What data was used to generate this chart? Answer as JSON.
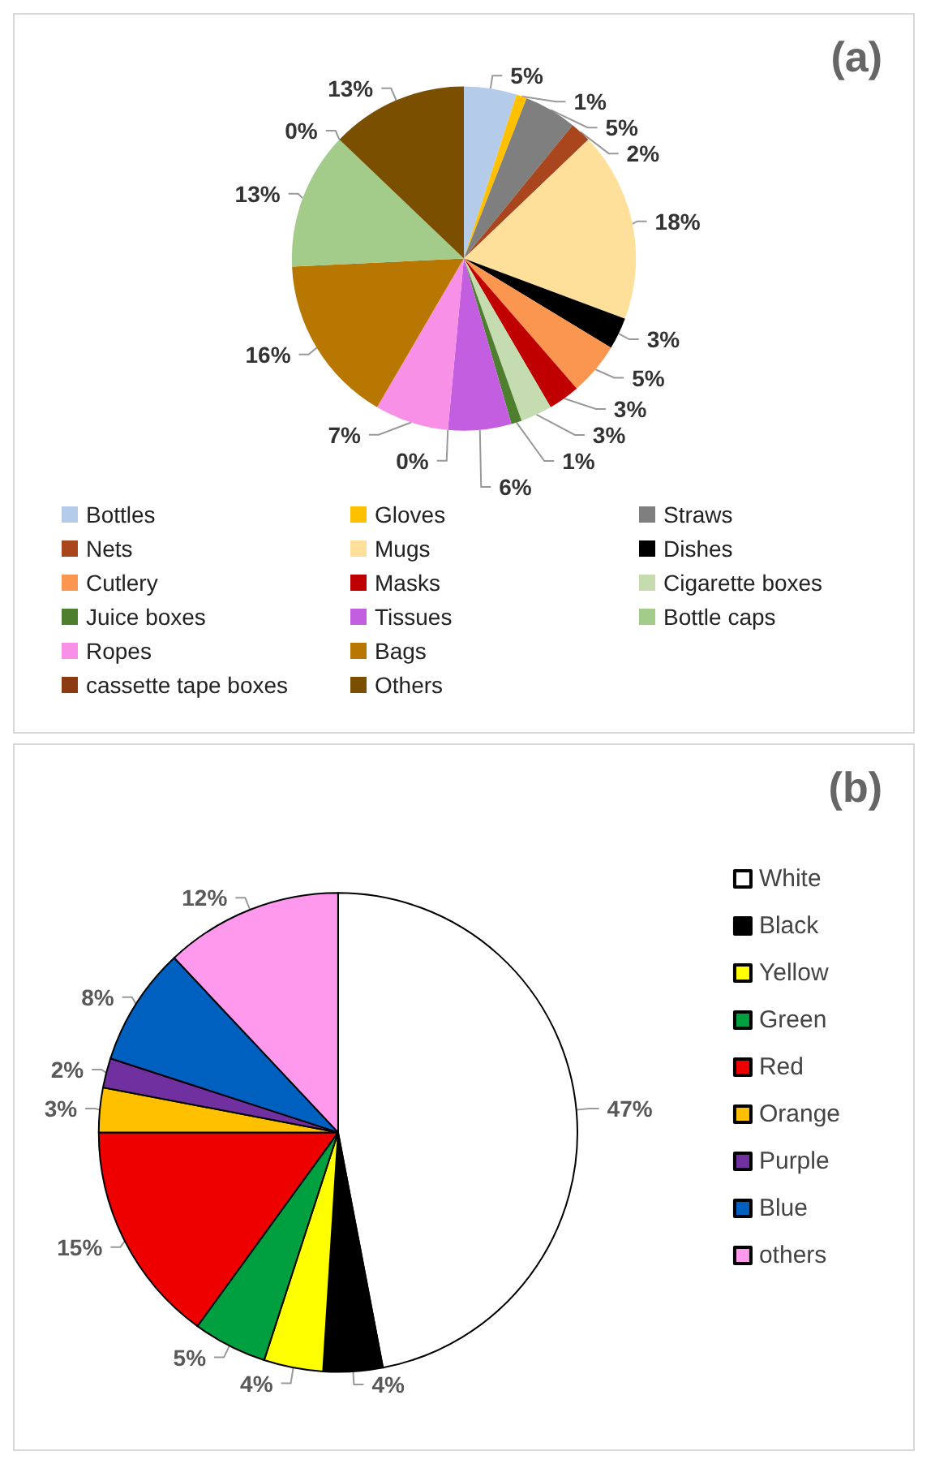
{
  "chart_data": [
    {
      "type": "pie",
      "title": "(a)",
      "categories": [
        "Bottles",
        "Gloves",
        "Straws",
        "Nets",
        "Mugs",
        "Dishes",
        "Cutlery",
        "Masks",
        "Cigarette boxes",
        "Juice boxes",
        "Tissues",
        null,
        "Ropes",
        "Bags",
        "Bottle caps",
        "cassette tape boxes",
        "Others"
      ],
      "values": [
        5,
        1,
        5,
        2,
        18,
        3,
        5,
        3,
        3,
        1,
        6,
        0,
        7,
        16,
        13,
        0,
        13
      ],
      "value_labels": [
        "5%",
        "1%",
        "5%",
        "2%",
        "18%",
        "3%",
        "5%",
        "3%",
        "3%",
        "1%",
        "6%",
        "0%",
        "7%",
        "16%",
        "13%",
        "0%",
        "13%"
      ],
      "colors": [
        "#b4cce9",
        "#ffc000",
        "#7f7f7f",
        "#a9461d",
        "#ffe09a",
        "#000000",
        "#fa9650",
        "#c00000",
        "#c5dbb0",
        "#4e7f2f",
        "#c45ee0",
        "#4e7f2f",
        "#f990e8",
        "#b87700",
        "#a3cc8a",
        "#8b3a12",
        "#7a4f00"
      ],
      "legend": "bottom"
    },
    {
      "type": "pie",
      "title": "(b)",
      "categories": [
        "White",
        "Black",
        "Yellow",
        "Green",
        "Red",
        "Orange",
        "Purple",
        "Blue",
        "others"
      ],
      "values": [
        47,
        4,
        4,
        5,
        15,
        3,
        2,
        8,
        12
      ],
      "value_labels": [
        "47%",
        "4%",
        "4%",
        "5%",
        "15%",
        "3%",
        "2%",
        "8%",
        "12%"
      ],
      "colors": [
        "#ffffff",
        "#000000",
        "#ffff00",
        "#00a040",
        "#ee0000",
        "#ffc000",
        "#7030a0",
        "#0060c0",
        "#ff99ee"
      ],
      "legend": "right"
    }
  ]
}
